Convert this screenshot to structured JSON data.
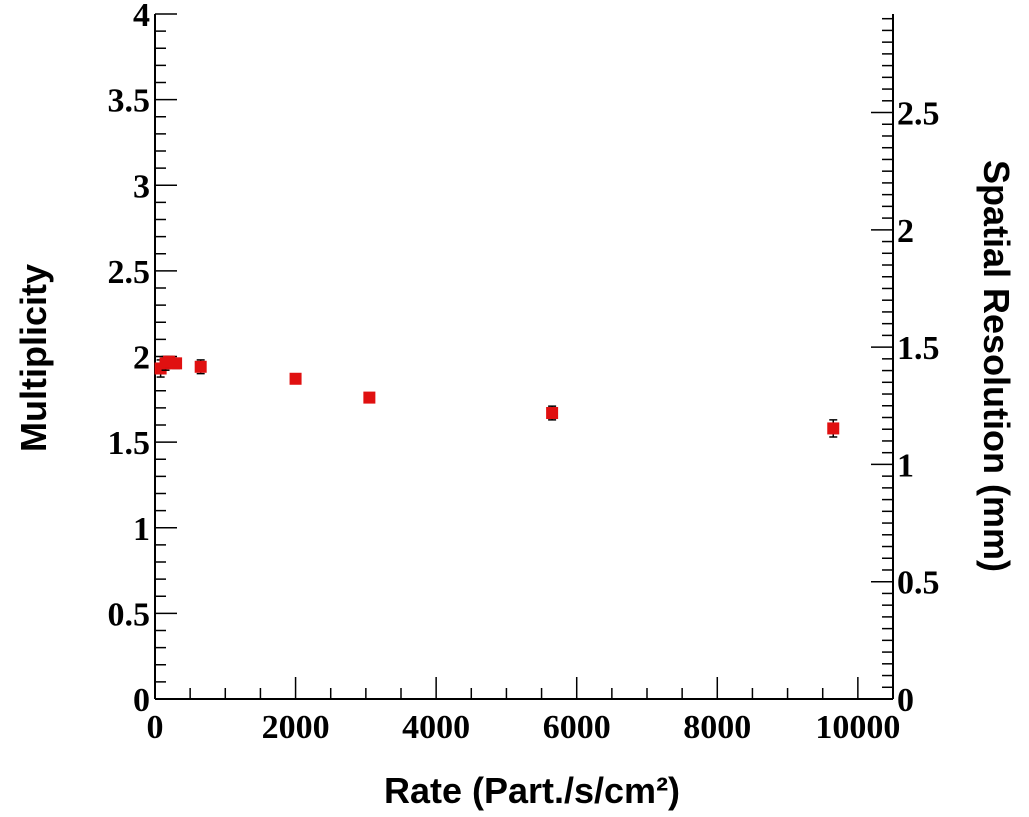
{
  "chart_data": {
    "type": "scatter",
    "title": "",
    "xlabel": "Rate (Part./s/cm²)",
    "ylabel": "Multiplicity",
    "y2label": "Spatial Resolution (mm)",
    "xlim": [
      0,
      10500
    ],
    "ylim": [
      0,
      4
    ],
    "y2lim": [
      0,
      2.92
    ],
    "grid": false,
    "x_ticks": [
      0,
      2000,
      4000,
      6000,
      8000,
      10000
    ],
    "x_tick_labels": [
      "0",
      "2000",
      "4000",
      "6000",
      "8000",
      "10000"
    ],
    "y_ticks": [
      0,
      0.5,
      1,
      1.5,
      2,
      2.5,
      3,
      3.5,
      4
    ],
    "y_tick_labels": [
      "0",
      "0.5",
      "1",
      "1.5",
      "2",
      "2.5",
      "3",
      "3.5",
      "4"
    ],
    "y2_ticks": [
      0,
      0.5,
      1,
      1.5,
      2,
      2.5
    ],
    "y2_tick_labels": [
      "0",
      "0.5",
      "1",
      "1.5",
      "2",
      "2.5"
    ],
    "marker_color": "#e01010",
    "series": [
      {
        "x": [
          80,
          150,
          200,
          300,
          650,
          2000,
          3050,
          5650,
          9650
        ],
        "y": [
          1.93,
          1.96,
          1.97,
          1.96,
          1.94,
          1.87,
          1.76,
          1.67,
          1.58
        ],
        "yerr": [
          0.05,
          0.04,
          0.03,
          0.03,
          0.04,
          0.02,
          0.02,
          0.04,
          0.05
        ]
      }
    ]
  }
}
